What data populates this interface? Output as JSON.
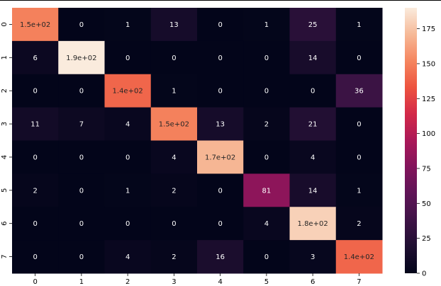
{
  "chart_data": {
    "type": "heatmap",
    "title": "",
    "xlabel": "",
    "ylabel": "",
    "x_categories": [
      "0",
      "1",
      "2",
      "3",
      "4",
      "5",
      "6",
      "7"
    ],
    "y_categories": [
      "0",
      "1",
      "2",
      "3",
      "4",
      "5",
      "6",
      "7"
    ],
    "values": [
      [
        150,
        0,
        1,
        13,
        0,
        1,
        25,
        1
      ],
      [
        6,
        190,
        0,
        0,
        0,
        0,
        14,
        0
      ],
      [
        0,
        0,
        140,
        1,
        0,
        0,
        0,
        36
      ],
      [
        11,
        7,
        4,
        150,
        13,
        2,
        21,
        0
      ],
      [
        0,
        0,
        0,
        4,
        170,
        0,
        4,
        0
      ],
      [
        2,
        0,
        1,
        2,
        0,
        81,
        14,
        1
      ],
      [
        0,
        0,
        0,
        0,
        0,
        4,
        180,
        2
      ],
      [
        0,
        0,
        4,
        2,
        16,
        0,
        3,
        140
      ]
    ],
    "annotations": [
      [
        "1.5e+02",
        "0",
        "1",
        "13",
        "0",
        "1",
        "25",
        "1"
      ],
      [
        "6",
        "1.9e+02",
        "0",
        "0",
        "0",
        "0",
        "14",
        "0"
      ],
      [
        "0",
        "0",
        "1.4e+02",
        "1",
        "0",
        "0",
        "0",
        "36"
      ],
      [
        "11",
        "7",
        "4",
        "1.5e+02",
        "13",
        "2",
        "21",
        "0"
      ],
      [
        "0",
        "0",
        "0",
        "4",
        "1.7e+02",
        "0",
        "4",
        "0"
      ],
      [
        "2",
        "0",
        "1",
        "2",
        "0",
        "81",
        "14",
        "1"
      ],
      [
        "0",
        "0",
        "0",
        "0",
        "0",
        "4",
        "1.8e+02",
        "2"
      ],
      [
        "0",
        "0",
        "4",
        "2",
        "16",
        "0",
        "3",
        "1.4e+02"
      ]
    ],
    "colorbar": {
      "min": 0,
      "max": 190,
      "ticks": [
        0,
        25,
        50,
        75,
        100,
        125,
        150,
        175
      ],
      "colormap": "rocket"
    }
  }
}
